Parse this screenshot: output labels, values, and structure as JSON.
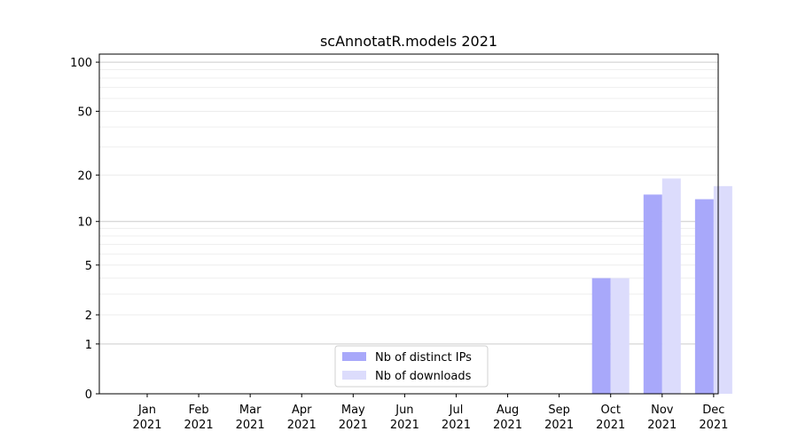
{
  "chart_data": {
    "type": "bar",
    "title": "scAnnotatR.models 2021",
    "categories": [
      "Jan 2021",
      "Feb 2021",
      "Mar 2021",
      "Apr 2021",
      "May 2021",
      "Jun 2021",
      "Jul 2021",
      "Aug 2021",
      "Sep 2021",
      "Oct 2021",
      "Nov 2021",
      "Dec 2021"
    ],
    "series": [
      {
        "name": "Nb of distinct IPs",
        "color": "#a8a8fa",
        "values": [
          0,
          0,
          0,
          0,
          0,
          0,
          0,
          0,
          0,
          4,
          15,
          14
        ]
      },
      {
        "name": "Nb of downloads",
        "color": "#dcdcfc",
        "values": [
          0,
          0,
          0,
          0,
          0,
          0,
          0,
          0,
          0,
          4,
          19,
          17
        ]
      }
    ],
    "yscale": "log1p",
    "ylim": [
      0,
      112
    ],
    "yticks": [
      0,
      1,
      2,
      5,
      10,
      20,
      50,
      100
    ],
    "minor_yticks": [
      3,
      4,
      6,
      7,
      8,
      9,
      30,
      40,
      60,
      70,
      80,
      90
    ],
    "grid": true,
    "legend": "lower center"
  }
}
